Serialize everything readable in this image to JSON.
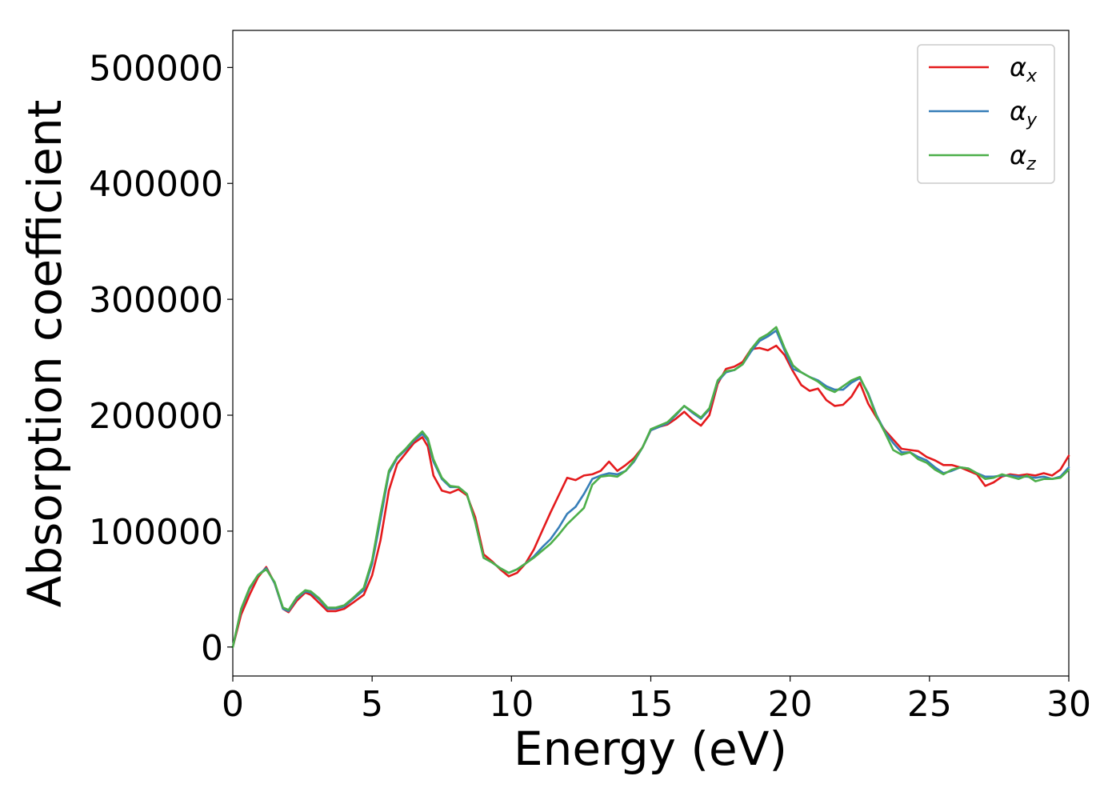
{
  "chart_data": {
    "type": "line",
    "title": "",
    "xlabel": "Energy (eV)",
    "ylabel": "Absorption coefficient",
    "xlim": [
      0,
      30
    ],
    "ylim": [
      -25000,
      532000
    ],
    "xticks": [
      0,
      5,
      10,
      15,
      20,
      25,
      30
    ],
    "xtick_labels": [
      "0",
      "5",
      "10",
      "15",
      "20",
      "25",
      "30"
    ],
    "yticks": [
      0,
      100000,
      200000,
      300000,
      400000,
      500000
    ],
    "ytick_labels": [
      "0",
      "100000",
      "200000",
      "300000",
      "400000",
      "500000"
    ],
    "grid": false,
    "legend": "top-right",
    "x": [
      0,
      0.3,
      0.6,
      0.9,
      1.2,
      1.5,
      1.8,
      2.0,
      2.3,
      2.6,
      2.8,
      3.1,
      3.4,
      3.7,
      4.0,
      4.3,
      4.7,
      5.0,
      5.3,
      5.6,
      5.9,
      6.2,
      6.5,
      6.8,
      7.0,
      7.2,
      7.5,
      7.8,
      8.1,
      8.4,
      8.7,
      9.0,
      9.3,
      9.6,
      9.9,
      10.2,
      10.5,
      10.8,
      11.1,
      11.4,
      11.7,
      12.0,
      12.3,
      12.6,
      12.9,
      13.2,
      13.5,
      13.8,
      14.1,
      14.4,
      14.7,
      15.0,
      15.3,
      15.6,
      15.9,
      16.2,
      16.5,
      16.8,
      17.1,
      17.4,
      17.7,
      18.0,
      18.3,
      18.6,
      18.9,
      19.2,
      19.5,
      19.8,
      20.1,
      20.4,
      20.7,
      21.0,
      21.3,
      21.6,
      21.9,
      22.2,
      22.5,
      22.8,
      23.1,
      23.4,
      23.7,
      24.0,
      24.3,
      24.6,
      24.9,
      25.2,
      25.5,
      25.8,
      26.1,
      26.4,
      26.7,
      27.0,
      27.3,
      27.6,
      27.9,
      28.2,
      28.5,
      28.8,
      29.1,
      29.4,
      29.7,
      30.0
    ],
    "series": [
      {
        "name": "α",
        "subscript": "x",
        "color": "#e41a1c",
        "values": [
          0,
          28000,
          45000,
          60000,
          69000,
          55000,
          33000,
          30000,
          40000,
          47000,
          45000,
          38000,
          31000,
          31000,
          33000,
          38000,
          45000,
          62000,
          92000,
          135000,
          158000,
          167000,
          176000,
          181000,
          173000,
          148000,
          135000,
          133000,
          136000,
          131000,
          112000,
          80000,
          74000,
          67000,
          61000,
          64000,
          72000,
          84000,
          100000,
          116000,
          131000,
          146000,
          144000,
          148000,
          149000,
          152000,
          160000,
          152000,
          157000,
          163000,
          172000,
          187000,
          190000,
          192000,
          197000,
          203000,
          196000,
          191000,
          200000,
          227000,
          240000,
          242000,
          246000,
          257000,
          258000,
          256000,
          260000,
          252000,
          238000,
          226000,
          221000,
          223000,
          213000,
          208000,
          209000,
          216000,
          228000,
          210000,
          198000,
          187000,
          179000,
          171000,
          170000,
          169000,
          164000,
          161000,
          157000,
          157000,
          155000,
          152000,
          149000,
          139000,
          142000,
          147000,
          149000,
          148000,
          149000,
          148000,
          150000,
          148000,
          153000,
          165000
        ]
      },
      {
        "name": "α",
        "subscript": "y",
        "color": "#377eb8",
        "values": [
          0,
          32000,
          50000,
          62000,
          68000,
          55000,
          33000,
          31000,
          42000,
          48000,
          47000,
          41000,
          33000,
          33000,
          35000,
          41000,
          49000,
          72000,
          110000,
          150000,
          163000,
          170000,
          178000,
          184000,
          178000,
          160000,
          145000,
          138000,
          138000,
          132000,
          108000,
          77000,
          73000,
          68000,
          64000,
          67000,
          72000,
          78000,
          86000,
          93000,
          103000,
          115000,
          121000,
          132000,
          145000,
          148000,
          150000,
          149000,
          152000,
          160000,
          172000,
          187000,
          190000,
          193000,
          200000,
          208000,
          202000,
          197000,
          205000,
          229000,
          237000,
          239000,
          244000,
          255000,
          264000,
          268000,
          273000,
          256000,
          240000,
          237000,
          233000,
          230000,
          225000,
          222000,
          222000,
          228000,
          232000,
          219000,
          200000,
          186000,
          176000,
          168000,
          168000,
          164000,
          161000,
          155000,
          150000,
          152000,
          155000,
          154000,
          150000,
          147000,
          147000,
          148000,
          148000,
          147000,
          147000,
          146000,
          147000,
          145000,
          147000,
          155000
        ]
      },
      {
        "name": "α",
        "subscript": "z",
        "color": "#4daf4a",
        "values": [
          0,
          33000,
          51000,
          62000,
          67000,
          56000,
          34000,
          32000,
          43000,
          49000,
          48000,
          42000,
          34000,
          34000,
          36000,
          42000,
          51000,
          75000,
          115000,
          152000,
          164000,
          171000,
          179000,
          186000,
          180000,
          162000,
          146000,
          139000,
          138000,
          132000,
          108000,
          77000,
          73000,
          68000,
          64000,
          67000,
          72000,
          77000,
          83000,
          89000,
          97000,
          106000,
          113000,
          120000,
          140000,
          147000,
          148000,
          147000,
          152000,
          161000,
          172000,
          188000,
          191000,
          194000,
          201000,
          208000,
          203000,
          198000,
          206000,
          230000,
          238000,
          239000,
          244000,
          257000,
          266000,
          270000,
          276000,
          258000,
          243000,
          237000,
          233000,
          229000,
          223000,
          220000,
          225000,
          230000,
          233000,
          218000,
          199000,
          185000,
          170000,
          166000,
          168000,
          162000,
          159000,
          153000,
          149000,
          153000,
          155000,
          154000,
          150000,
          145000,
          146000,
          149000,
          147000,
          145000,
          148000,
          143000,
          145000,
          145000,
          146000,
          153000
        ]
      }
    ]
  }
}
